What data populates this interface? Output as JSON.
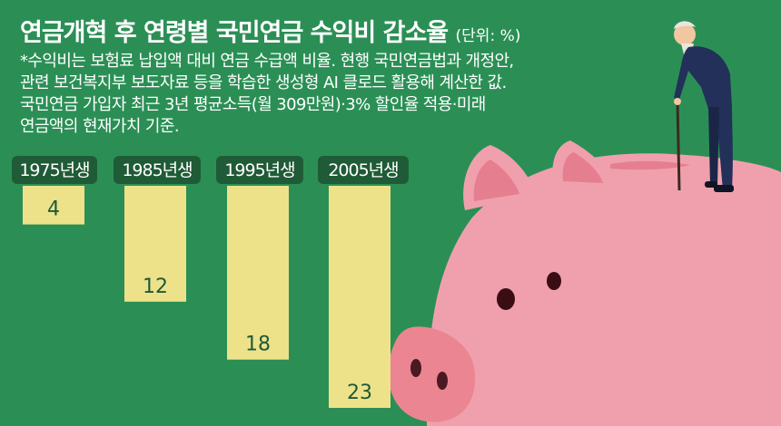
{
  "header": {
    "title": "연금개혁 후 연령별 국민연금 수익비 감소율",
    "unit": "(단위: %)"
  },
  "notes": [
    "*수익비는 보험료 납입액 대비 연금 수급액 비율. 현행 국민연금법과 개정안,",
    "관련 보건복지부 보도자료 등을 학습한 생성형 AI 클로드 활용해 계산한 값.",
    "국민연금 가입자 최근 3년 평균소득(월 309만원)·3% 할인율 적용·미래",
    "연금액의 현재가치 기준."
  ],
  "colors": {
    "background": "#2b8f55",
    "bar": "#ede28a",
    "label_box": "#1f5b36",
    "pig": "#f0a0ad",
    "pig_dark": "#e57f8f",
    "snout": "#eb8592",
    "man_suit": "#22305a"
  },
  "chart_data": {
    "type": "bar",
    "categories": [
      "1975년생",
      "1985년생",
      "1995년생",
      "2005년생"
    ],
    "values": [
      4,
      12,
      18,
      23
    ],
    "title": "연금개혁 후 연령별 국민연금 수익비 감소율",
    "unit": "%",
    "orientation": "downward",
    "ylim": [
      0,
      23
    ]
  }
}
